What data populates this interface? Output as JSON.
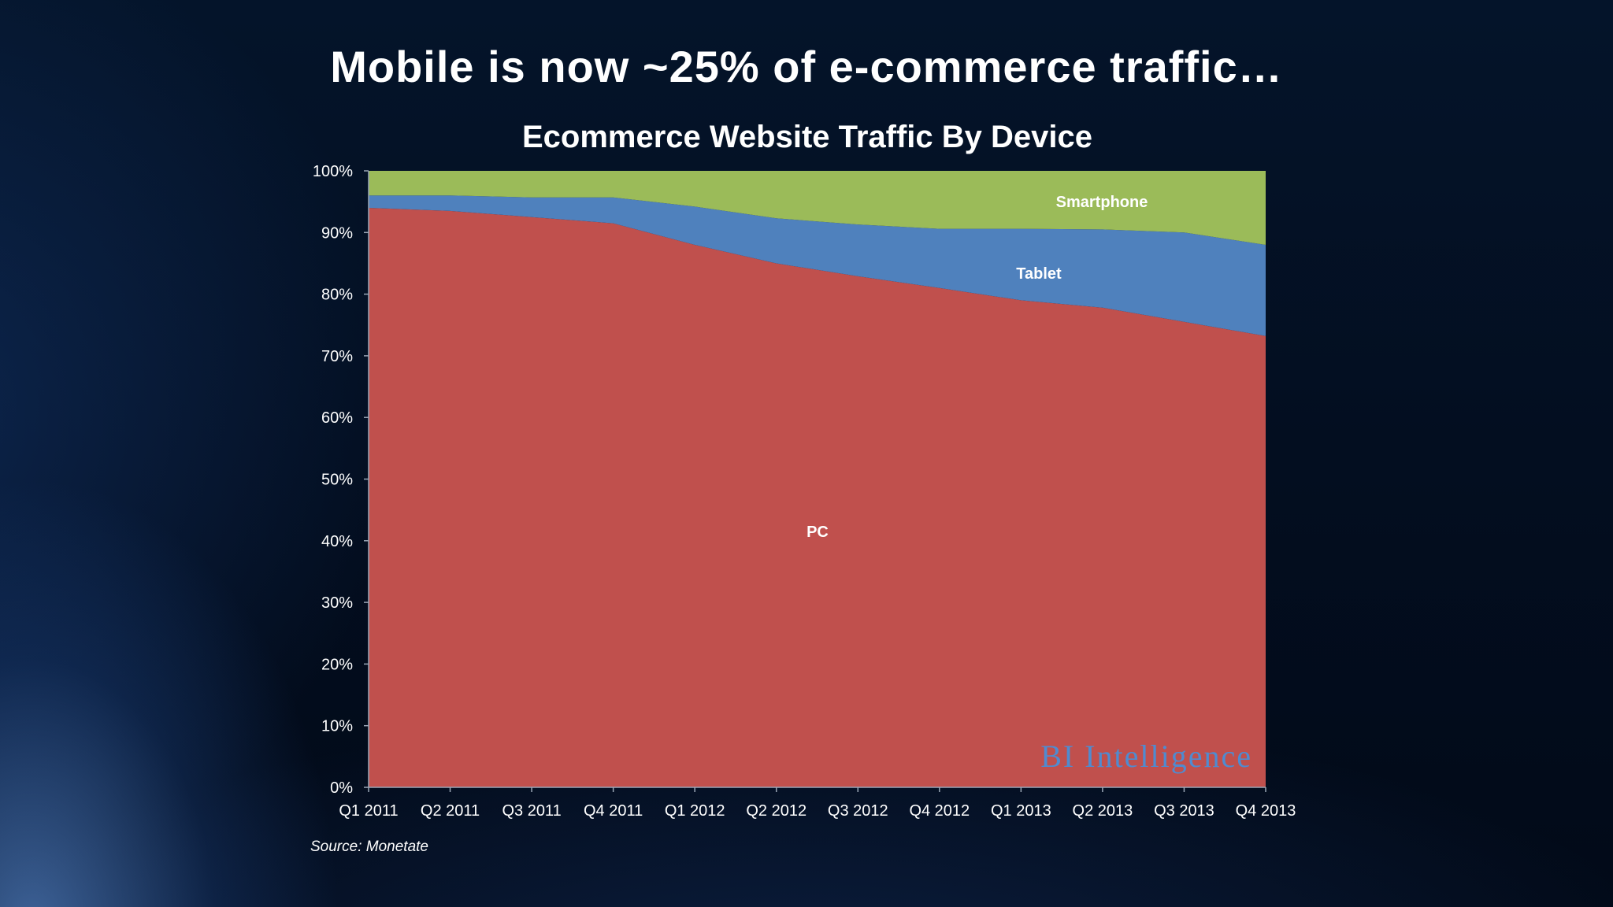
{
  "slide": {
    "title": "Mobile is now ~25% of e-commerce traffic…",
    "source": "Source: Monetate",
    "watermark": "BI Intelligence"
  },
  "chart_data": {
    "type": "area",
    "stacked": true,
    "title": "Ecommerce Website Traffic By Device",
    "xlabel": "",
    "ylabel": "",
    "ylim": [
      0,
      100
    ],
    "yticks": [
      "0%",
      "10%",
      "20%",
      "30%",
      "40%",
      "50%",
      "60%",
      "70%",
      "80%",
      "90%",
      "100%"
    ],
    "categories": [
      "Q1 2011",
      "Q2 2011",
      "Q3 2011",
      "Q4 2011",
      "Q1 2012",
      "Q2 2012",
      "Q3 2012",
      "Q4 2012",
      "Q1 2013",
      "Q2 2013",
      "Q3 2013",
      "Q4 2013"
    ],
    "legend": "none",
    "grid": false,
    "series": [
      {
        "name": "PC",
        "color": "#c0504d",
        "values": [
          94.0,
          93.5,
          92.5,
          91.5,
          88.0,
          85.0,
          82.9,
          81.0,
          79.0,
          77.8,
          75.5,
          73.2
        ]
      },
      {
        "name": "Tablet",
        "color": "#4f81bd",
        "values": [
          2.0,
          2.5,
          3.2,
          4.2,
          6.2,
          7.3,
          8.4,
          9.6,
          11.6,
          12.7,
          14.5,
          14.8
        ]
      },
      {
        "name": "Smartphone",
        "color": "#9bbb59",
        "values": [
          4.0,
          4.0,
          4.3,
          4.3,
          5.8,
          7.7,
          8.7,
          9.4,
          9.4,
          9.5,
          10.0,
          12.0
        ]
      }
    ]
  }
}
